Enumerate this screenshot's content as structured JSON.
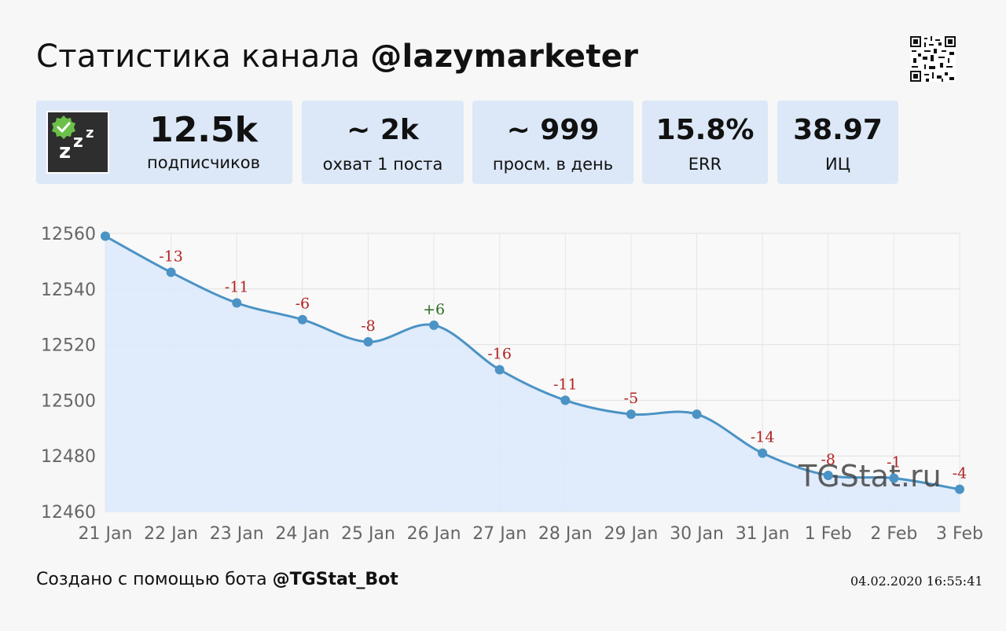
{
  "header": {
    "title_prefix": "Статистика канала",
    "channel": "@lazymarketer"
  },
  "cards": {
    "subscribers": {
      "value": "12.5k",
      "label": "подписчиков"
    },
    "reach": {
      "value": "~ 2k",
      "label": "охват 1 поста"
    },
    "daily_views": {
      "value": "~ 999",
      "label": "просм. в день"
    },
    "err": {
      "value": "15.8%",
      "label": "ERR"
    },
    "citation": {
      "value": "38.97",
      "label": "ИЦ"
    }
  },
  "footer": {
    "created_prefix": "Создано с помощью бота",
    "bot": "@TGStat_Bot",
    "timestamp": "04.02.2020 16:55:41"
  },
  "watermark": "TGStat.ru",
  "colors": {
    "card_bg": "#dce8f7",
    "line": "#4b93c4",
    "area": "#dde9fb",
    "negative": "#b22222",
    "positive": "#2e6b1f"
  },
  "chart_data": {
    "type": "area",
    "title": "",
    "xlabel": "",
    "ylabel": "",
    "categories": [
      "21 Jan",
      "22 Jan",
      "23 Jan",
      "24 Jan",
      "25 Jan",
      "26 Jan",
      "27 Jan",
      "28 Jan",
      "29 Jan",
      "30 Jan",
      "31 Jan",
      "1 Feb",
      "2 Feb",
      "3 Feb"
    ],
    "values": [
      12559,
      12546,
      12535,
      12529,
      12521,
      12527,
      12511,
      12500,
      12495,
      12495,
      12481,
      12473,
      12472,
      12468
    ],
    "annotations": [
      "",
      "-13",
      "-11",
      "-6",
      "-8",
      "+6",
      "-16",
      "-11",
      "-5",
      "",
      "-14",
      "-8",
      "-1",
      "-4"
    ],
    "yticks": [
      12560,
      12540,
      12520,
      12500,
      12480,
      12460
    ],
    "ylim": [
      12460,
      12560
    ],
    "grid": true
  }
}
